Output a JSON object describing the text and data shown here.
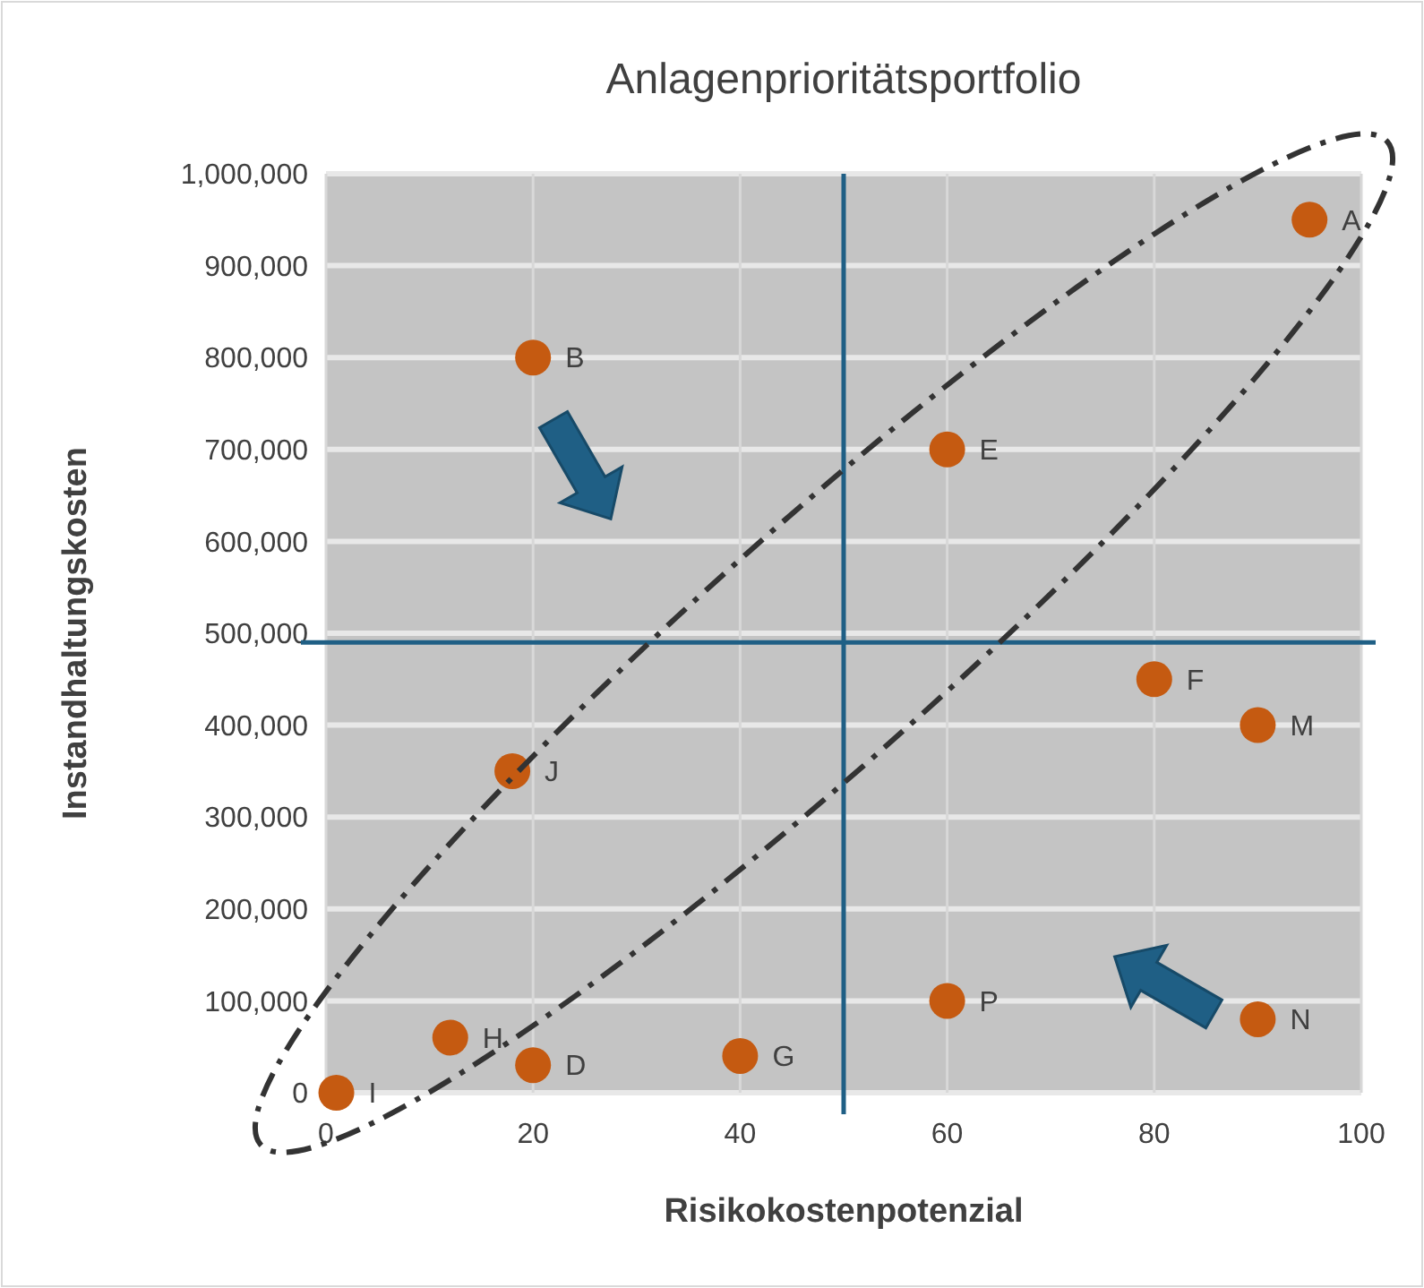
{
  "chart_data": {
    "type": "scatter",
    "title": "Anlagenprioritätsportfolio",
    "xlabel": "Risikokostenpotenzial",
    "ylabel": "Instandhaltungskosten",
    "x": [
      95,
      20,
      60,
      80,
      90,
      18,
      60,
      90,
      12,
      20,
      40,
      1
    ],
    "values": [
      950000,
      800000,
      700000,
      450000,
      400000,
      350000,
      100000,
      80000,
      60000,
      30000,
      40000,
      0
    ],
    "color": "#c55a11",
    "marker": "circle",
    "grid": true,
    "xlim": [
      0,
      100
    ],
    "xticks": [
      0,
      20,
      40,
      60,
      80,
      100
    ],
    "ylim": [
      0,
      1000000
    ],
    "yticks": [
      {
        "value": 0,
        "label": "0"
      },
      {
        "value": 100000,
        "label": "100,000"
      },
      {
        "value": 200000,
        "label": "200,000"
      },
      {
        "value": 300000,
        "label": "300,000"
      },
      {
        "value": 400000,
        "label": "400,000"
      },
      {
        "value": 500000,
        "label": "500,000"
      },
      {
        "value": 600000,
        "label": "600,000"
      },
      {
        "value": 700000,
        "label": "700,000"
      },
      {
        "value": 800000,
        "label": "800,000"
      },
      {
        "value": 900000,
        "label": "900,000"
      },
      {
        "value": 1000000,
        "label": "1,000,000"
      }
    ],
    "ref_lines": [
      {
        "axis": "x",
        "value": 50,
        "color": "#1f5f85"
      },
      {
        "axis": "y",
        "value": 490000,
        "color": "#1f5f85"
      }
    ],
    "annotations": [
      {
        "text": "A",
        "x": 95,
        "y": 950000
      },
      {
        "text": "B",
        "x": 20,
        "y": 800000
      },
      {
        "text": "E",
        "x": 60,
        "y": 700000
      },
      {
        "text": "F",
        "x": 80,
        "y": 450000
      },
      {
        "text": "M",
        "x": 90,
        "y": 400000
      },
      {
        "text": "J",
        "x": 18,
        "y": 350000
      },
      {
        "text": "P",
        "x": 60,
        "y": 100000
      },
      {
        "text": "N",
        "x": 90,
        "y": 80000
      },
      {
        "text": "H",
        "x": 12,
        "y": 60000
      },
      {
        "text": "D",
        "x": 20,
        "y": 30000
      },
      {
        "text": "G",
        "x": 40,
        "y": 40000
      },
      {
        "text": "I",
        "x": 1,
        "y": 0
      }
    ]
  }
}
